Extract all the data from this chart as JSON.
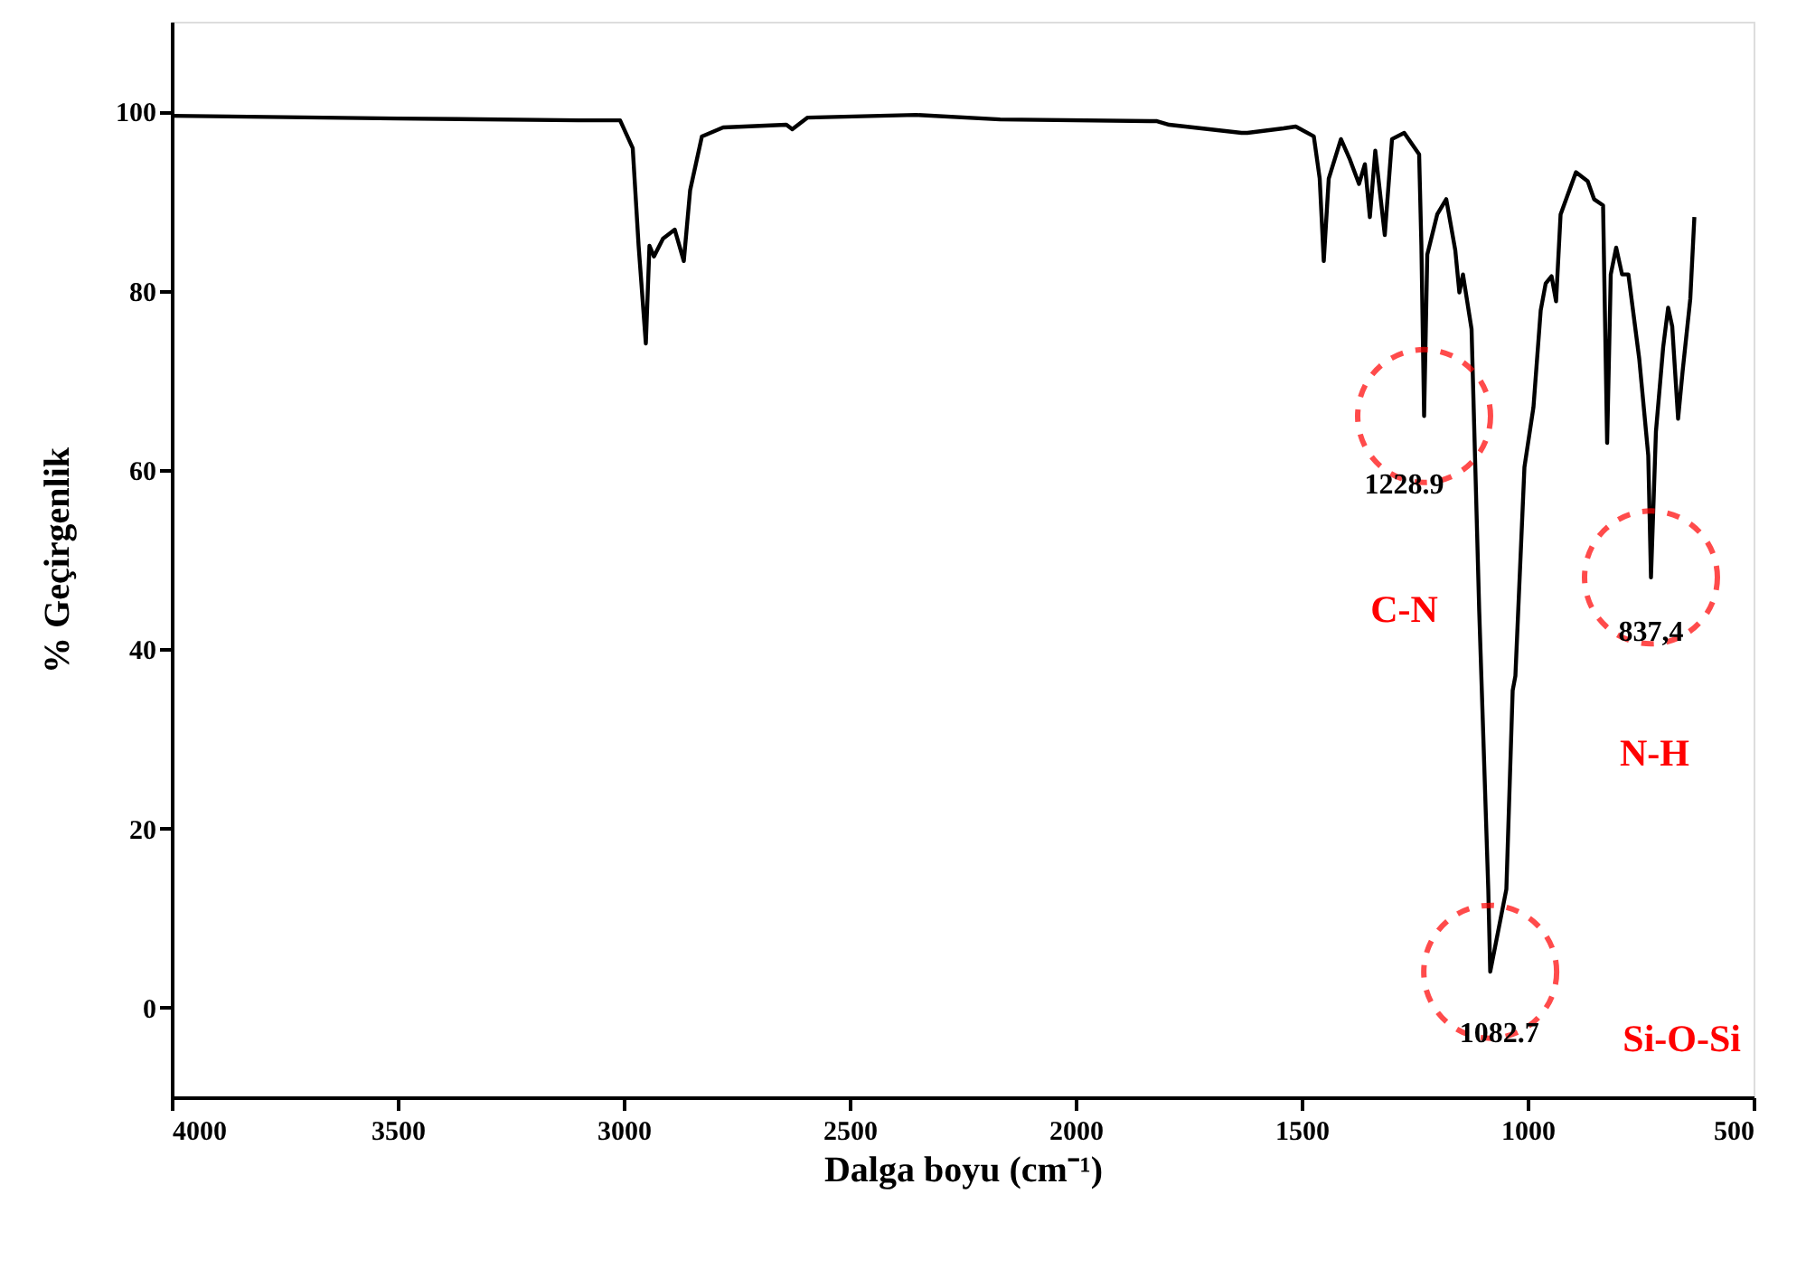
{
  "chart_data": {
    "type": "line",
    "xlabel": "Dalga boyu (cm⁻¹)",
    "ylabel": "% Geçirgenlik",
    "x": [
      4000,
      3500,
      3100,
      3008,
      2980,
      2967,
      2951,
      2943,
      2933,
      2913,
      2887,
      2867,
      2853,
      2827,
      2780,
      2640,
      2627,
      2593,
      2353,
      2167,
      1820,
      1793,
      1633,
      1620,
      1540,
      1513,
      1473,
      1460,
      1451,
      1440,
      1413,
      1393,
      1373,
      1360,
      1349,
      1337,
      1316,
      1300,
      1273,
      1240,
      1235,
      1229,
      1222,
      1200,
      1180,
      1160,
      1151,
      1143,
      1124,
      1107,
      1087,
      1082.7,
      1047,
      1033,
      1027,
      1007,
      987,
      971,
      960,
      947,
      937,
      927,
      893,
      867,
      853,
      833,
      824,
      816,
      804,
      791,
      777,
      753,
      733,
      727,
      716,
      700,
      689,
      680,
      667,
      657,
      640,
      631
    ],
    "series": [
      {
        "color": "#000000",
        "values": [
          99.5,
          99.2,
          99,
          99,
          95.9,
          85,
          74.1,
          85,
          83.8,
          85.8,
          86.8,
          83.3,
          91.2,
          97.2,
          98.2,
          98.5,
          98,
          99.3,
          99.6,
          99.1,
          98.9,
          98.5,
          97.6,
          97.6,
          98.1,
          98.3,
          97.2,
          92.5,
          83.3,
          92.5,
          96.9,
          94.6,
          91.9,
          94.1,
          88.2,
          95.6,
          86.2,
          96.9,
          97.6,
          95.2,
          85,
          66,
          84,
          88.5,
          90.2,
          84.5,
          79.8,
          81.8,
          75.7,
          44.2,
          13.2,
          4,
          13.2,
          35.4,
          37,
          60.3,
          67,
          77.8,
          80.8,
          81.6,
          78.8,
          88.5,
          93.2,
          92.2,
          90.2,
          89.5,
          63,
          81.8,
          84.8,
          81.8,
          81.8,
          72.4,
          61.6,
          48,
          64.3,
          73.7,
          78.1,
          76,
          65.7,
          71,
          79.1,
          88.2
        ]
      }
    ],
    "xlim": [
      4000,
      500
    ],
    "xticks": [
      4000,
      3500,
      3000,
      2500,
      2000,
      1500,
      1000,
      500
    ],
    "ylim": [
      -10,
      110
    ],
    "yticks": [
      0,
      20,
      40,
      60,
      80,
      100
    ],
    "grid": false,
    "marker": "none",
    "line_style": "solid",
    "annotations": [
      {
        "text": "1228.9",
        "x": 1229,
        "y": 66
      },
      "C-N",
      {
        "text": "837,4",
        "x": 727,
        "y": 48
      },
      "N-H",
      {
        "text": "1082.7",
        "x": 1082.7,
        "y": 4
      },
      "Si-O-Si"
    ]
  }
}
